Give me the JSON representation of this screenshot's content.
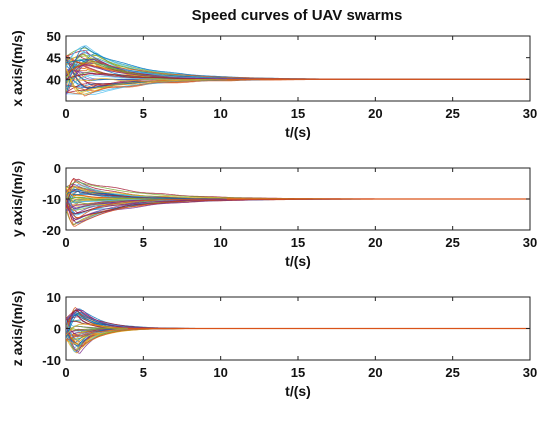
{
  "figure": {
    "title": "Speed curves of UAV swarms",
    "line_colors": [
      "#0072BD",
      "#D95319",
      "#EDB120",
      "#7E2F8E",
      "#77AC30",
      "#4DBEEE",
      "#A2142F"
    ]
  },
  "chart_data": [
    {
      "type": "line",
      "name": "x axis",
      "xlabel": "t/(s)",
      "ylabel": "x axis/(m/s)",
      "xlim": [
        0,
        30
      ],
      "ylim": [
        35,
        50
      ],
      "xticks": [
        0,
        5,
        10,
        15,
        20,
        25,
        30
      ],
      "yticks": [
        40,
        45,
        50
      ],
      "steady_value": 40,
      "initial_range": [
        36,
        46
      ],
      "peak_range": [
        36,
        48
      ],
      "peak_time": 1.5,
      "converge_time": 13,
      "grid": false
    },
    {
      "type": "line",
      "name": "y axis",
      "xlabel": "t/(s)",
      "ylabel": "y axis/(m/s)",
      "xlim": [
        0,
        30
      ],
      "ylim": [
        -20,
        0
      ],
      "xticks": [
        0,
        5,
        10,
        15,
        20,
        25,
        30
      ],
      "yticks": [
        -20,
        -10,
        0
      ],
      "steady_value": -10,
      "initial_range": [
        -14,
        -6
      ],
      "peak_range": [
        -19,
        -3
      ],
      "peak_time": 0.6,
      "converge_time": 13,
      "grid": false
    },
    {
      "type": "line",
      "name": "z axis",
      "xlabel": "t/(s)",
      "ylabel": "z axis/(m/s)",
      "xlim": [
        0,
        30
      ],
      "ylim": [
        -10,
        10
      ],
      "xticks": [
        0,
        5,
        10,
        15,
        20,
        25,
        30
      ],
      "yticks": [
        -10,
        0,
        10
      ],
      "steady_value": 0,
      "initial_range": [
        -4,
        4
      ],
      "peak_range": [
        -8,
        7
      ],
      "peak_time": 0.8,
      "converge_time": 5,
      "grid": false
    }
  ]
}
